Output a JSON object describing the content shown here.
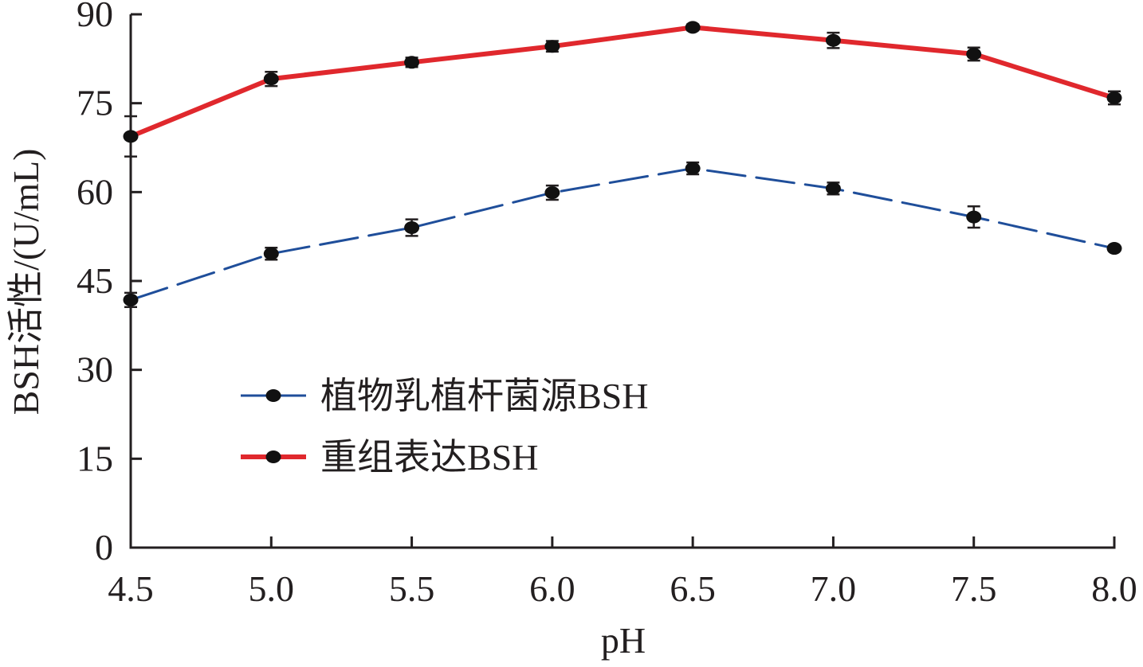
{
  "chart_data": {
    "type": "line",
    "title": "",
    "xlabel": "pH",
    "ylabel": "BSH活性/(U/mL)",
    "x": [
      4.5,
      5.0,
      5.5,
      6.0,
      6.5,
      7.0,
      7.5,
      8.0
    ],
    "x_tick_labels": [
      "4.5",
      "5.0",
      "5.5",
      "6.0",
      "6.5",
      "7.0",
      "7.5",
      "8.0"
    ],
    "y_ticks": [
      0,
      15,
      30,
      45,
      60,
      75,
      90
    ],
    "y_tick_labels": [
      "0",
      "15",
      "30",
      "45",
      "60",
      "75",
      "90"
    ],
    "xlim": [
      4.5,
      8.0
    ],
    "ylim": [
      0,
      90
    ],
    "grid": false,
    "legend_position": "lower-left",
    "series": [
      {
        "name": "植物乳植杆菌源BSH",
        "values": [
          41.8,
          49.6,
          54.0,
          59.9,
          64.0,
          60.6,
          55.8,
          50.5
        ],
        "errors": [
          1.2,
          1.0,
          1.4,
          1.2,
          1.0,
          1.0,
          1.8,
          0.4
        ],
        "color": "#1f4e9a",
        "style": "dashed"
      },
      {
        "name": "重组表达BSH",
        "values": [
          69.4,
          79.1,
          81.9,
          84.6,
          87.8,
          85.6,
          83.3,
          75.9
        ],
        "errors": [
          3.4,
          1.2,
          0.8,
          0.9,
          0.5,
          1.3,
          1.1,
          1.1
        ],
        "color": "#e0282d",
        "style": "solid"
      }
    ]
  }
}
